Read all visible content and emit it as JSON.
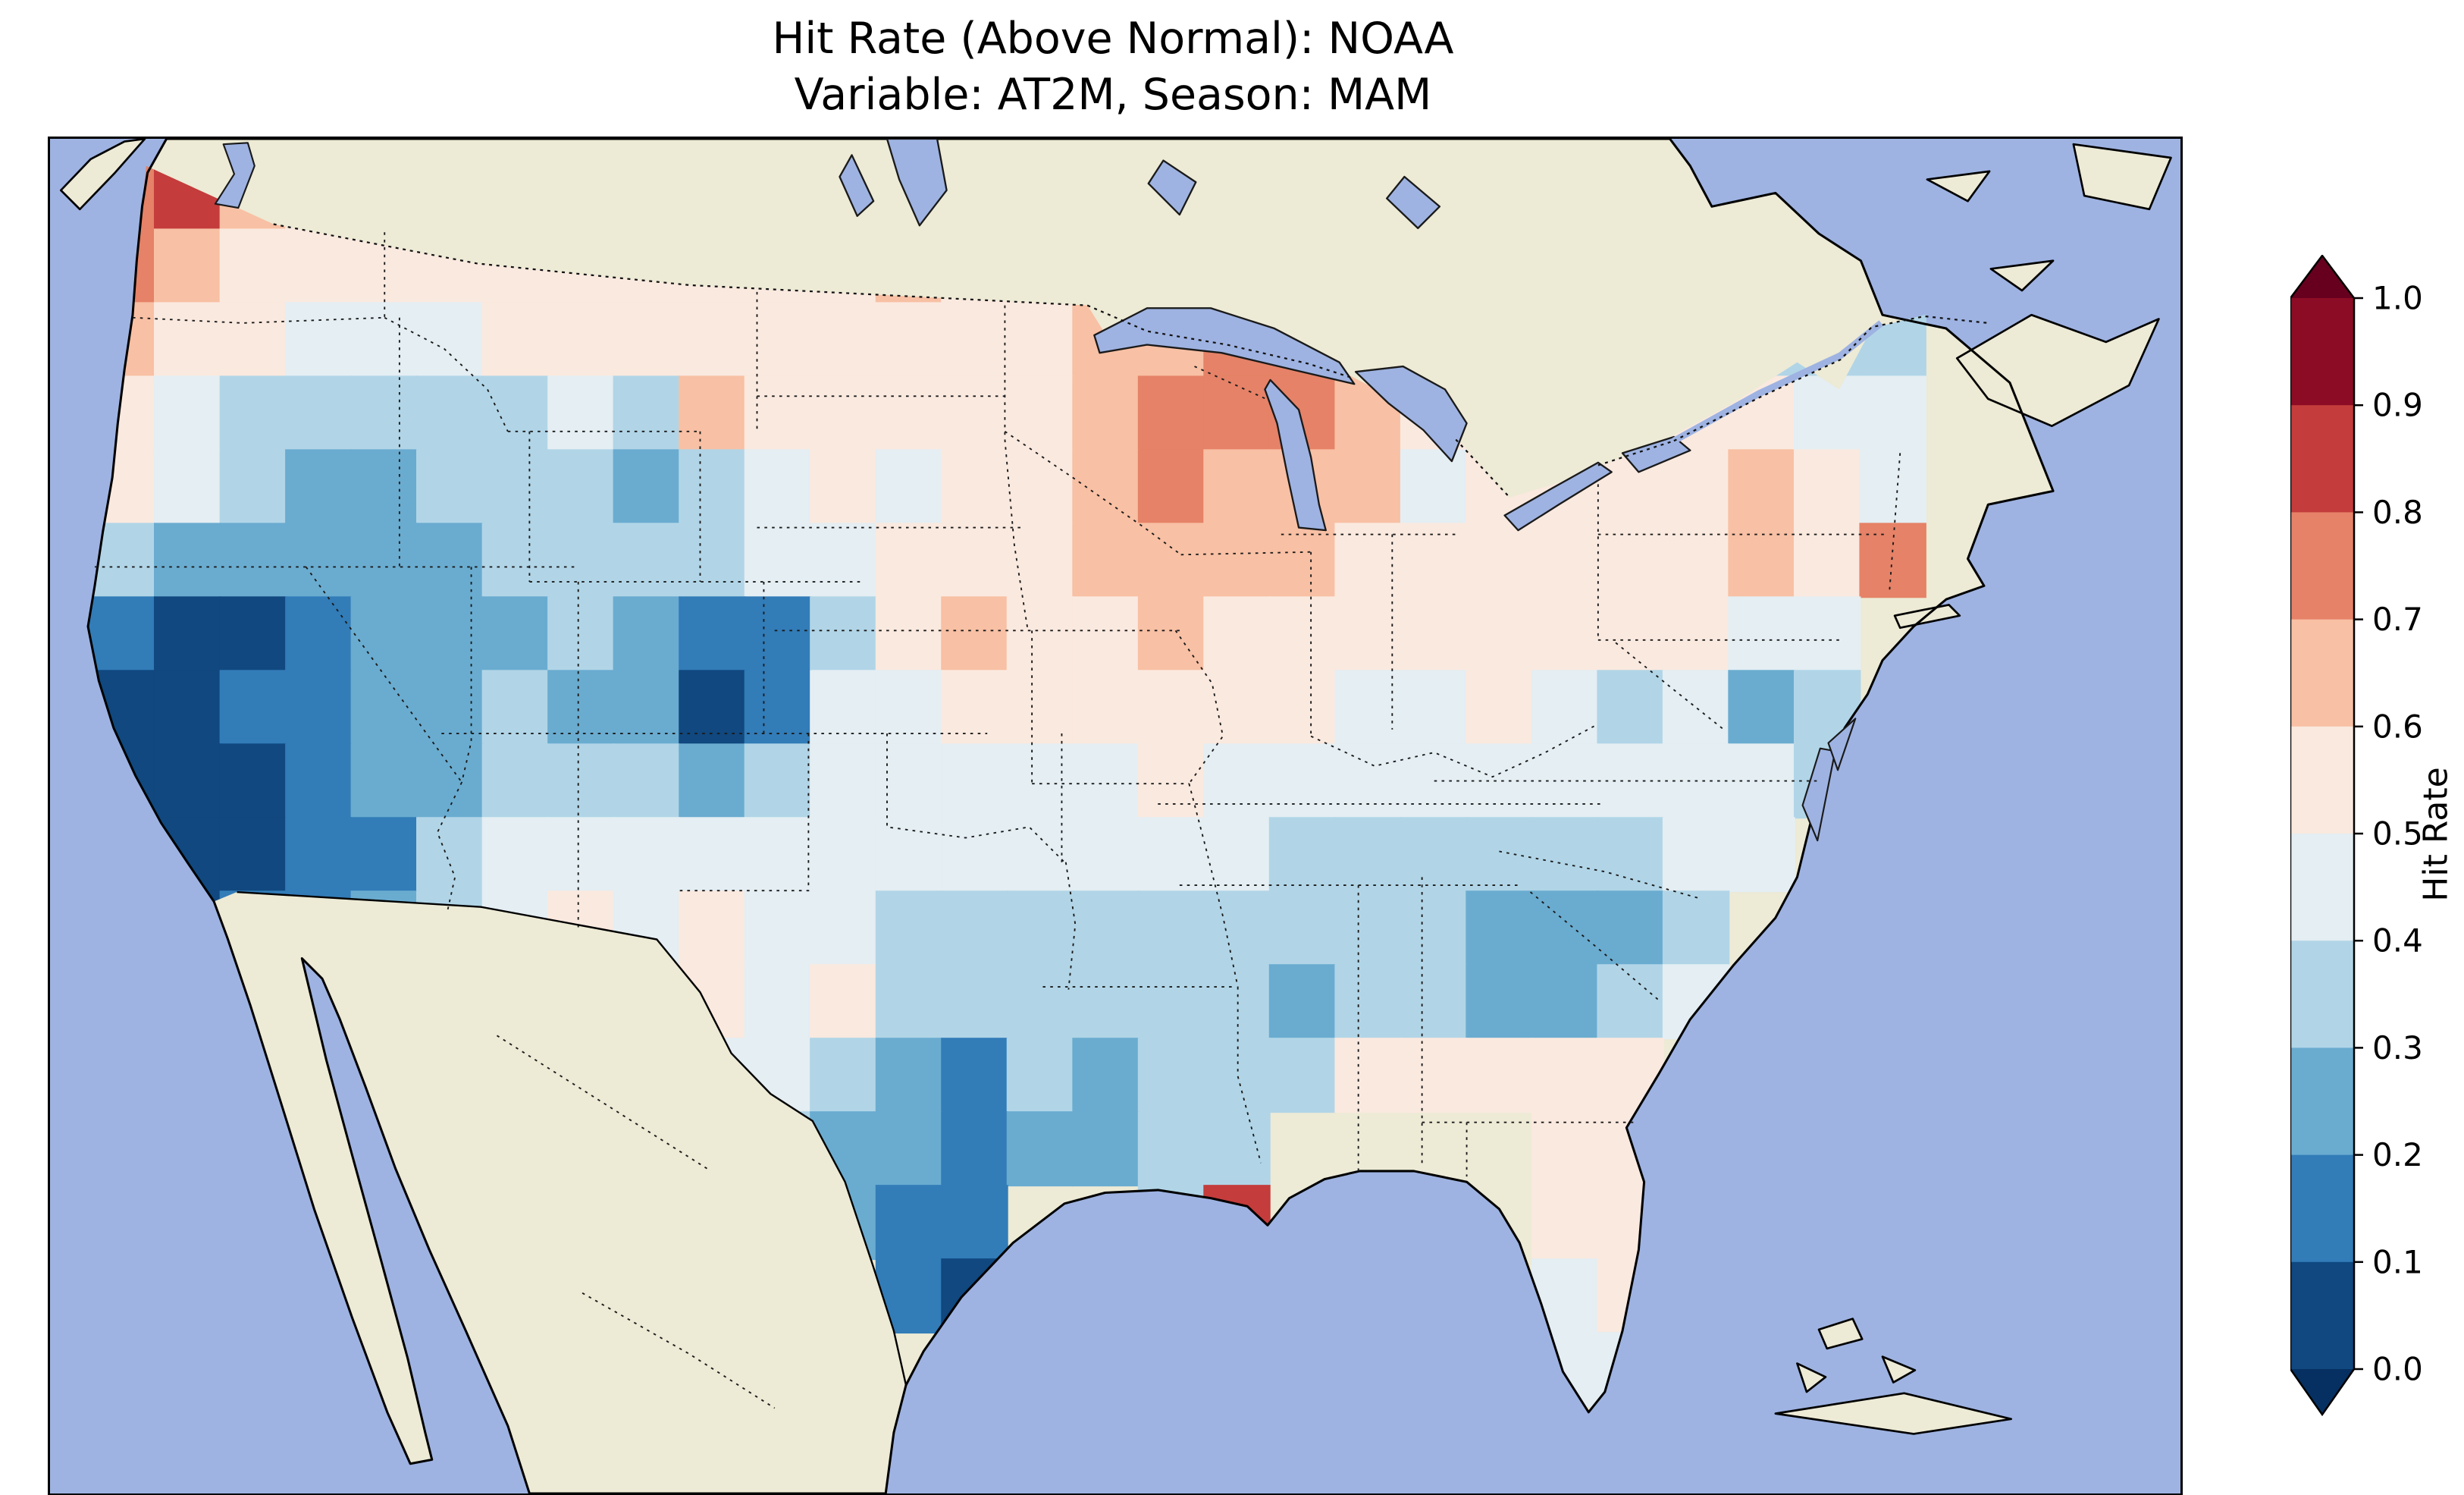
{
  "title": {
    "line1": "Hit Rate (Above Normal): NOAA",
    "line2": "Variable: AT2M, Season: MAM"
  },
  "map": {
    "ocean_color": "#9eb3e2",
    "land_color": "#edead5",
    "coastline_color": "#000000"
  },
  "colorbar": {
    "label": "Hit Rate",
    "tick_labels": [
      "1.0",
      "0.9",
      "0.8",
      "0.7",
      "0.6",
      "0.5",
      "0.4",
      "0.3",
      "0.2",
      "0.1",
      "0.0"
    ],
    "band_colors": [
      "#10487f",
      "#327cb8",
      "#6aacd0",
      "#b1d5e7",
      "#e4eef3",
      "#fae9df",
      "#f8c0a4",
      "#e58267",
      "#c43c3c",
      "#8c0c25"
    ],
    "under_color": "#053061",
    "over_color": "#67001f"
  },
  "chart_data": {
    "type": "heatmap",
    "title": "Hit Rate (Above Normal): NOAA",
    "subtitle": "Variable: AT2M, Season: MAM",
    "metric": "Hit Rate",
    "levels": [
      0.0,
      0.1,
      0.2,
      0.3,
      0.4,
      0.5,
      0.6,
      0.7,
      0.8,
      0.9,
      1.0
    ],
    "legend_position": "right",
    "grid": {
      "cols": 28,
      "rows": 17,
      "values": [
        [
          0.75,
          0.85,
          0.65,
          0.55,
          0.55,
          0.5,
          0.55,
          0.55,
          0.55,
          0.55,
          0.55,
          0.55,
          0.5,
          0.55,
          0.55,
          0.6,
          0.7,
          0.75,
          0.65,
          null,
          null,
          null,
          null,
          null,
          null,
          null,
          null,
          null
        ],
        [
          0.7,
          0.6,
          0.55,
          0.5,
          0.5,
          0.55,
          0.5,
          0.55,
          0.55,
          0.5,
          0.55,
          0.55,
          0.65,
          0.55,
          0.5,
          0.55,
          0.7,
          0.75,
          0.7,
          0.6,
          null,
          null,
          null,
          null,
          null,
          null,
          null,
          0.3
        ],
        [
          0.6,
          0.55,
          0.5,
          0.45,
          0.45,
          0.45,
          0.5,
          0.5,
          0.5,
          0.55,
          0.5,
          0.55,
          0.55,
          0.5,
          0.55,
          0.6,
          0.65,
          0.7,
          0.7,
          0.65,
          0.45,
          null,
          null,
          null,
          0.45,
          0.35,
          0.3,
          0.35
        ],
        [
          0.55,
          0.45,
          0.35,
          0.3,
          0.3,
          0.3,
          0.35,
          0.4,
          0.35,
          0.65,
          0.5,
          0.5,
          0.5,
          0.5,
          0.55,
          0.6,
          0.7,
          0.7,
          0.7,
          0.65,
          0.5,
          0.45,
          0.45,
          null,
          0.55,
          0.55,
          0.4,
          0.45
        ],
        [
          0.5,
          0.4,
          0.3,
          0.25,
          0.25,
          0.3,
          0.3,
          0.35,
          0.25,
          0.35,
          0.45,
          0.5,
          0.45,
          0.5,
          0.55,
          0.65,
          0.7,
          0.65,
          0.6,
          0.6,
          0.45,
          0.5,
          0.5,
          0.55,
          0.55,
          0.6,
          0.55,
          0.45
        ],
        [
          0.35,
          0.25,
          0.2,
          0.2,
          0.25,
          0.25,
          0.3,
          0.3,
          0.3,
          0.3,
          0.4,
          0.45,
          0.5,
          0.5,
          0.55,
          0.6,
          0.65,
          0.65,
          0.6,
          0.55,
          0.55,
          0.55,
          0.55,
          0.55,
          0.55,
          0.6,
          0.55,
          0.7
        ],
        [
          0.15,
          0.05,
          0.05,
          0.1,
          0.2,
          0.25,
          0.25,
          0.3,
          0.25,
          0.1,
          0.1,
          0.35,
          0.5,
          0.65,
          0.55,
          0.55,
          0.6,
          0.55,
          0.55,
          0.55,
          0.5,
          0.55,
          0.55,
          0.5,
          0.5,
          0.4,
          0.45,
          null
        ],
        [
          0.05,
          0.05,
          0.1,
          0.15,
          0.2,
          0.25,
          0.3,
          0.25,
          0.2,
          0.05,
          0.1,
          0.4,
          0.45,
          0.5,
          0.5,
          0.5,
          0.55,
          0.5,
          0.5,
          0.45,
          0.45,
          0.5,
          0.45,
          0.35,
          0.4,
          0.25,
          0.35,
          null
        ],
        [
          0.05,
          0.0,
          0.05,
          0.1,
          0.2,
          0.25,
          0.3,
          0.35,
          0.3,
          0.2,
          0.3,
          0.45,
          0.45,
          0.45,
          0.45,
          0.45,
          0.5,
          0.45,
          0.45,
          0.4,
          0.4,
          0.4,
          0.4,
          0.45,
          0.45,
          0.4,
          0.35,
          null
        ],
        [
          0.0,
          0.0,
          0.05,
          0.1,
          0.15,
          0.3,
          0.45,
          0.45,
          0.4,
          0.45,
          0.45,
          0.4,
          0.4,
          0.4,
          0.4,
          0.4,
          0.4,
          0.4,
          0.35,
          0.35,
          0.35,
          0.35,
          0.3,
          0.35,
          0.4,
          0.4,
          null,
          null
        ],
        [
          0.05,
          0.0,
          0.1,
          0.15,
          0.2,
          0.35,
          0.45,
          0.55,
          0.45,
          0.5,
          0.45,
          0.45,
          0.35,
          0.35,
          0.35,
          0.35,
          0.35,
          0.3,
          0.3,
          0.3,
          0.3,
          0.25,
          0.2,
          0.25,
          0.35,
          null,
          null,
          null
        ],
        [
          null,
          0.1,
          0.15,
          0.2,
          0.35,
          0.45,
          0.5,
          0.5,
          0.45,
          0.55,
          0.45,
          0.5,
          0.3,
          0.3,
          0.3,
          0.3,
          0.3,
          0.3,
          0.25,
          0.3,
          0.3,
          0.25,
          0.25,
          0.3,
          0.4,
          null,
          null,
          null
        ],
        [
          null,
          null,
          null,
          null,
          null,
          0.5,
          0.55,
          0.5,
          0.45,
          0.4,
          0.45,
          0.35,
          0.2,
          0.15,
          0.3,
          0.25,
          0.3,
          0.35,
          0.3,
          0.55,
          0.5,
          0.5,
          0.55,
          0.55,
          null,
          null,
          null,
          null
        ],
        [
          null,
          null,
          null,
          null,
          null,
          null,
          null,
          0.45,
          0.4,
          0.35,
          0.3,
          0.25,
          0.2,
          0.15,
          0.2,
          0.25,
          0.3,
          0.35,
          null,
          null,
          null,
          null,
          0.5,
          0.55,
          null,
          null,
          null,
          null
        ],
        [
          null,
          null,
          null,
          null,
          null,
          null,
          null,
          null,
          null,
          null,
          null,
          0.2,
          0.15,
          0.1,
          null,
          null,
          0.3,
          0.8,
          null,
          null,
          null,
          null,
          0.5,
          0.5,
          null,
          null,
          null,
          null
        ],
        [
          null,
          null,
          null,
          null,
          null,
          null,
          null,
          null,
          null,
          null,
          null,
          null,
          0.1,
          0.05,
          null,
          null,
          null,
          null,
          null,
          null,
          null,
          null,
          0.45,
          0.5,
          null,
          null,
          null,
          null
        ],
        [
          null,
          null,
          null,
          null,
          null,
          null,
          null,
          null,
          null,
          null,
          null,
          null,
          null,
          0.1,
          null,
          null,
          null,
          null,
          null,
          null,
          null,
          null,
          0.4,
          0.45,
          null,
          null,
          null,
          null
        ]
      ]
    }
  }
}
